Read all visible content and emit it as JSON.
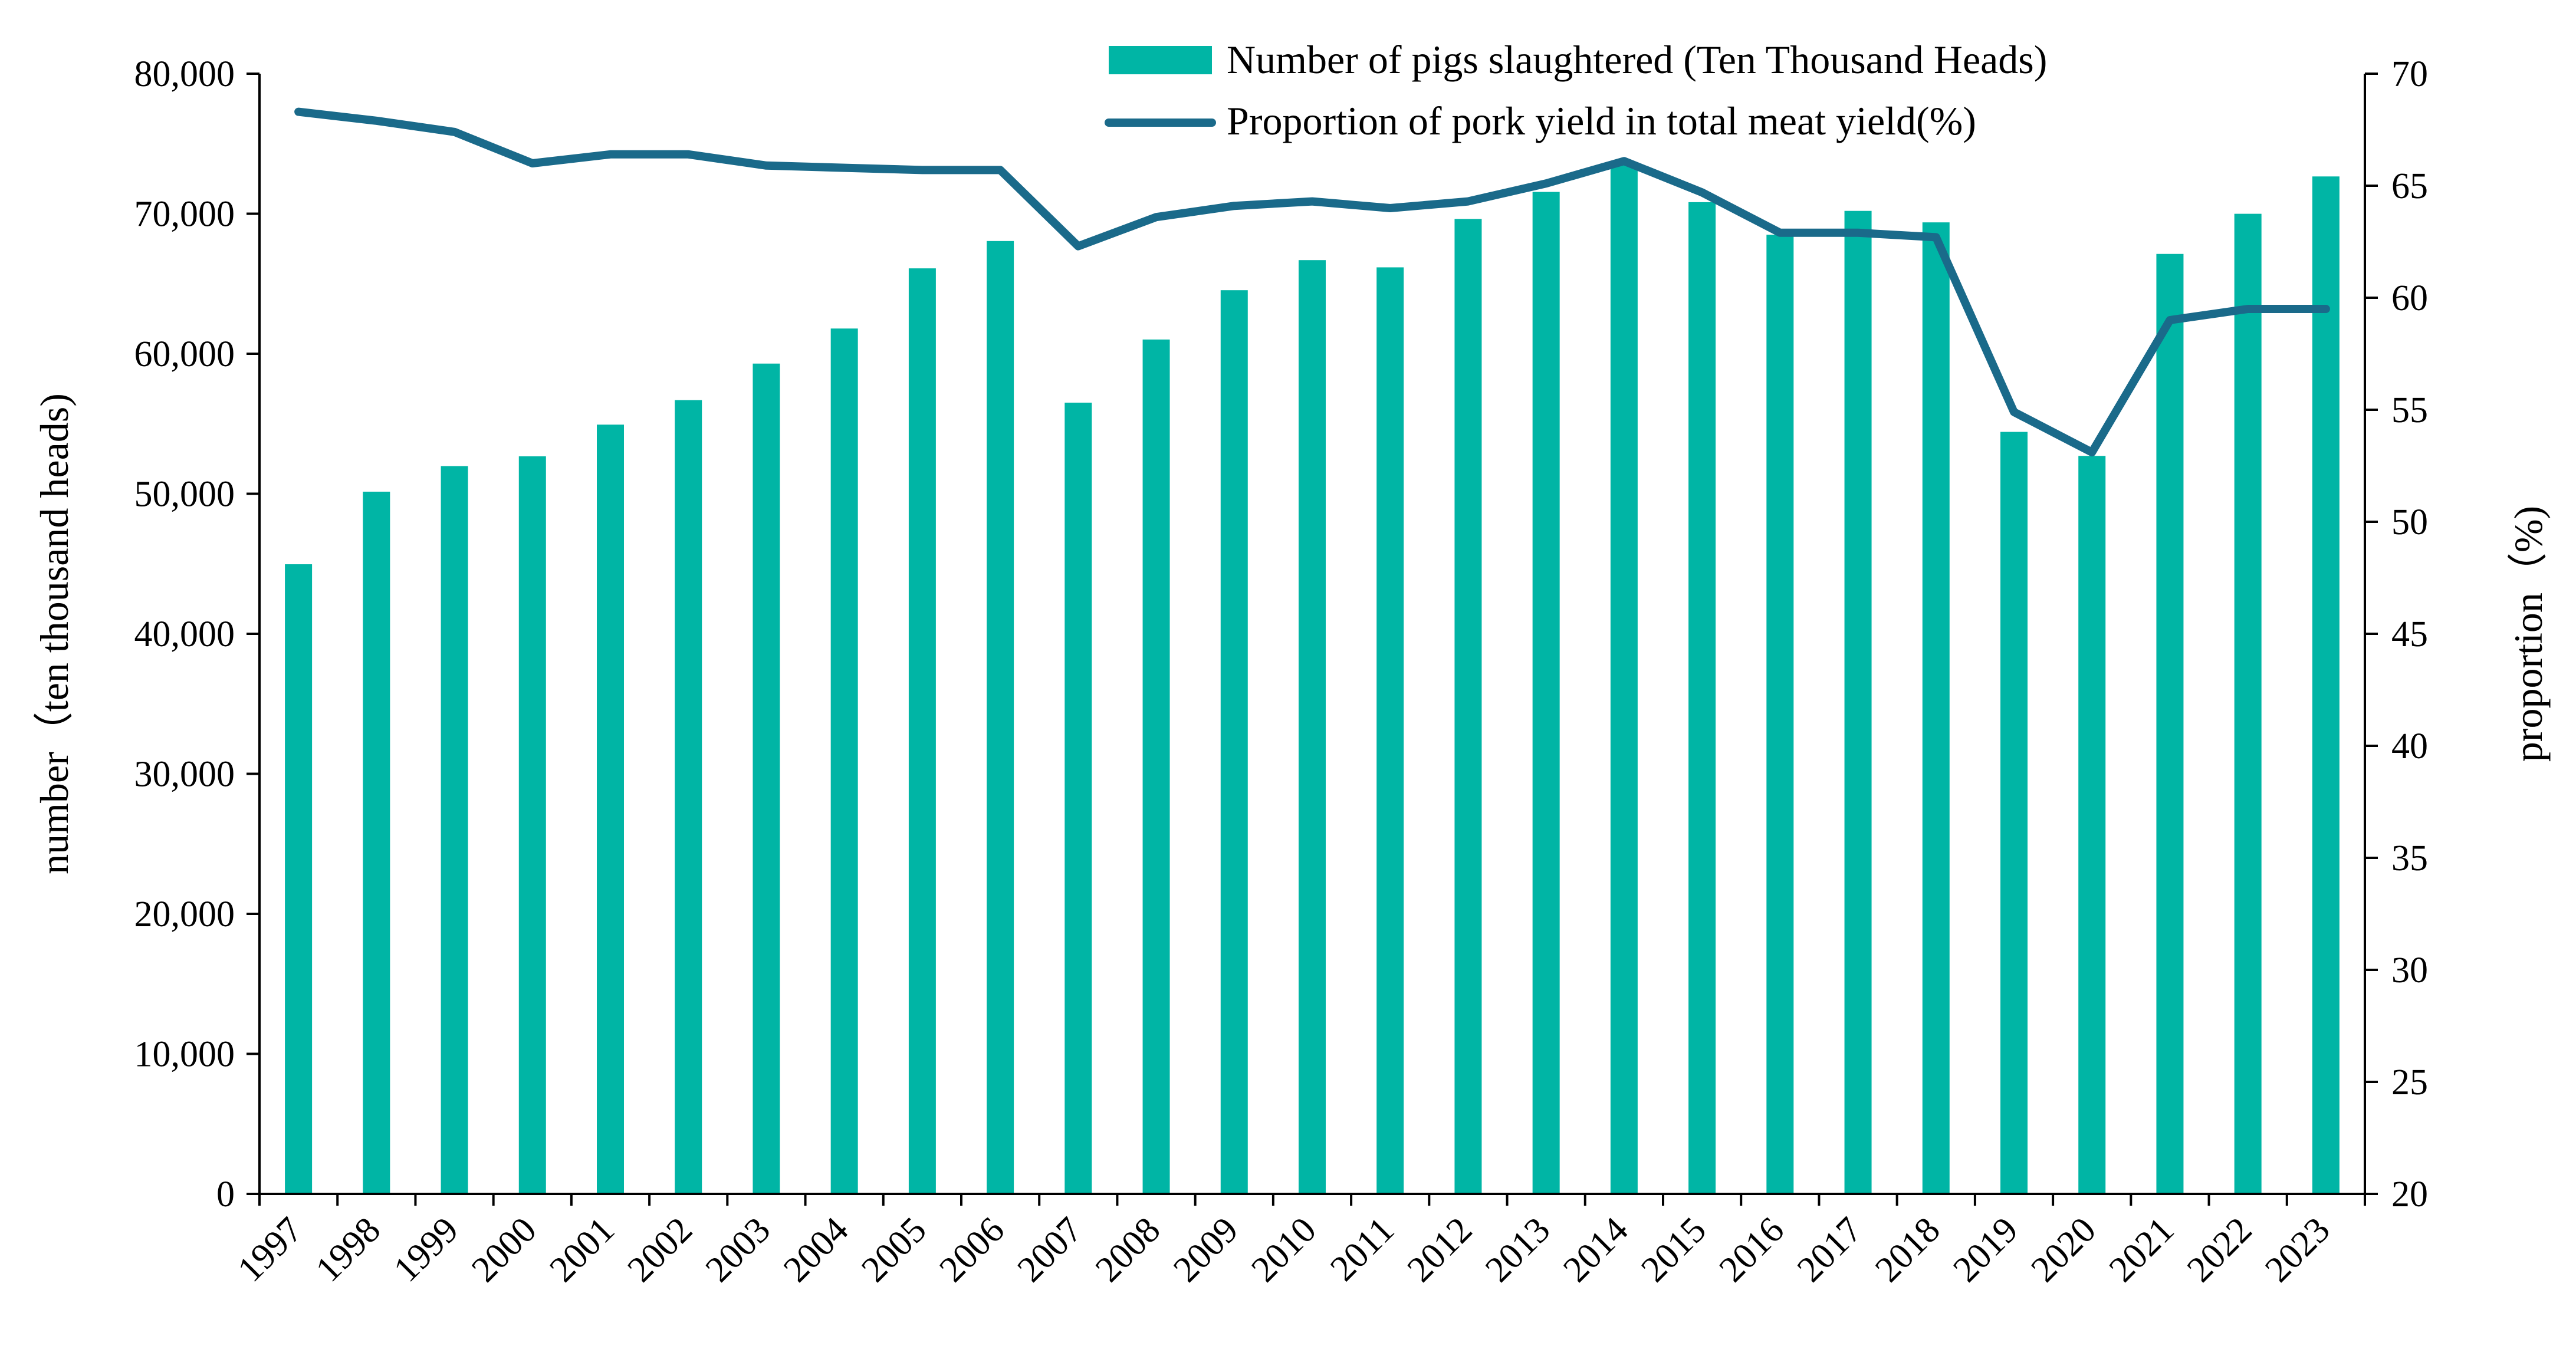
{
  "chart_data": {
    "type": "bar+line",
    "title": "",
    "categories": [
      "1997",
      "1998",
      "1999",
      "2000",
      "2001",
      "2002",
      "2003",
      "2004",
      "2005",
      "2006",
      "2007",
      "2008",
      "2009",
      "2010",
      "2011",
      "2012",
      "2013",
      "2014",
      "2015",
      "2016",
      "2017",
      "2018",
      "2019",
      "2020",
      "2021",
      "2022",
      "2023"
    ],
    "series": [
      {
        "name": "Number of pigs slaughtered (Ten Thousand Heads)",
        "type": "bar",
        "axis": "left",
        "color": "#00b5a5",
        "values": [
          44966,
          50150,
          51977,
          52673,
          54937,
          56687,
          59297,
          61801,
          66098,
          68050,
          56508,
          61017,
          64539,
          66686,
          66170,
          69628,
          71557,
          73510,
          70825,
          68502,
          70202,
          69382,
          54419,
          52704,
          67128,
          69995,
          72662
        ]
      },
      {
        "name": "Proportion of pork yield in total meat yield(%)",
        "type": "line",
        "axis": "right",
        "color": "#1a6a8a",
        "values": [
          68.3,
          67.9,
          67.4,
          66.0,
          66.4,
          66.4,
          65.9,
          65.8,
          65.7,
          65.7,
          62.3,
          63.6,
          64.1,
          64.3,
          64.0,
          64.3,
          65.1,
          66.1,
          64.7,
          62.9,
          62.9,
          62.7,
          54.9,
          53.1,
          59.0,
          59.5,
          59.5
        ]
      }
    ],
    "ylabel": "number（ten thousand heads)",
    "y2label": "proportion（%)",
    "ylim": [
      0,
      80000
    ],
    "y2lim": [
      20,
      70
    ],
    "yticks": [
      "0",
      "10,000",
      "20,000",
      "30,000",
      "40,000",
      "50,000",
      "60,000",
      "70,000",
      "80,000"
    ],
    "y2ticks": [
      "20",
      "25",
      "30",
      "35",
      "40",
      "45",
      "50",
      "55",
      "60",
      "65",
      "70"
    ],
    "legend_position": "top-right",
    "grid": false
  }
}
